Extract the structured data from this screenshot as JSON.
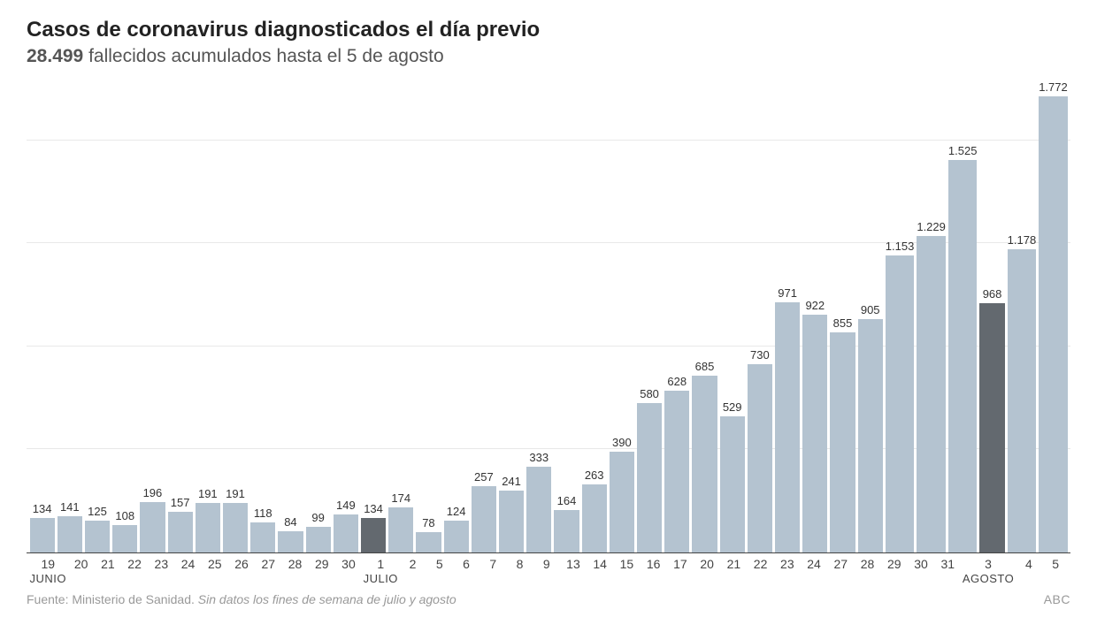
{
  "title": "Casos de coronavirus diagnosticados el día previo",
  "subtitle_bold": "28.499",
  "subtitle_rest": " fallecidos acumulados hasta el 5 de agosto",
  "footer_source": "Fuente: Ministerio de Sanidad. ",
  "footer_note": "Sin datos los fines de semana de julio y agosto",
  "footer_brand": "ABC",
  "chart": {
    "type": "bar",
    "ylim_max": 1850,
    "gridlines_at": [
      400,
      800,
      1200,
      1600
    ],
    "bar_color": "#b4c3d0",
    "bar_color_highlight": "#63696f",
    "gridline_color": "#e8e8e8",
    "axis_color": "#444444",
    "value_fontsize": 13,
    "xlabel_fontsize": 14,
    "month_fontsize": 13,
    "bars": [
      {
        "day": "19",
        "month": "JUNIO",
        "value": 134,
        "label": "134",
        "highlight": false
      },
      {
        "day": "20",
        "month": "",
        "value": 141,
        "label": "141",
        "highlight": false
      },
      {
        "day": "21",
        "month": "",
        "value": 125,
        "label": "125",
        "highlight": false
      },
      {
        "day": "22",
        "month": "",
        "value": 108,
        "label": "108",
        "highlight": false
      },
      {
        "day": "23",
        "month": "",
        "value": 196,
        "label": "196",
        "highlight": false
      },
      {
        "day": "24",
        "month": "",
        "value": 157,
        "label": "157",
        "highlight": false
      },
      {
        "day": "25",
        "month": "",
        "value": 191,
        "label": "191",
        "highlight": false
      },
      {
        "day": "26",
        "month": "",
        "value": 191,
        "label": "191",
        "highlight": false
      },
      {
        "day": "27",
        "month": "",
        "value": 118,
        "label": "118",
        "highlight": false
      },
      {
        "day": "28",
        "month": "",
        "value": 84,
        "label": "84",
        "highlight": false
      },
      {
        "day": "29",
        "month": "",
        "value": 99,
        "label": "99",
        "highlight": false
      },
      {
        "day": "30",
        "month": "",
        "value": 149,
        "label": "149",
        "highlight": false
      },
      {
        "day": "1",
        "month": "JULIO",
        "value": 134,
        "label": "134",
        "highlight": true
      },
      {
        "day": "2",
        "month": "",
        "value": 174,
        "label": "174",
        "highlight": false
      },
      {
        "day": "5",
        "month": "",
        "value": 78,
        "label": "78",
        "highlight": false
      },
      {
        "day": "6",
        "month": "",
        "value": 124,
        "label": "124",
        "highlight": false
      },
      {
        "day": "7",
        "month": "",
        "value": 257,
        "label": "257",
        "highlight": false
      },
      {
        "day": "8",
        "month": "",
        "value": 241,
        "label": "241",
        "highlight": false
      },
      {
        "day": "9",
        "month": "",
        "value": 333,
        "label": "333",
        "highlight": false
      },
      {
        "day": "13",
        "month": "",
        "value": 164,
        "label": "164",
        "highlight": false
      },
      {
        "day": "14",
        "month": "",
        "value": 263,
        "label": "263",
        "highlight": false
      },
      {
        "day": "15",
        "month": "",
        "value": 390,
        "label": "390",
        "highlight": false
      },
      {
        "day": "16",
        "month": "",
        "value": 580,
        "label": "580",
        "highlight": false
      },
      {
        "day": "17",
        "month": "",
        "value": 628,
        "label": "628",
        "highlight": false
      },
      {
        "day": "20",
        "month": "",
        "value": 685,
        "label": "685",
        "highlight": false
      },
      {
        "day": "21",
        "month": "",
        "value": 529,
        "label": "529",
        "highlight": false
      },
      {
        "day": "22",
        "month": "",
        "value": 730,
        "label": "730",
        "highlight": false
      },
      {
        "day": "23",
        "month": "",
        "value": 971,
        "label": "971",
        "highlight": false
      },
      {
        "day": "24",
        "month": "",
        "value": 922,
        "label": "922",
        "highlight": false
      },
      {
        "day": "27",
        "month": "",
        "value": 855,
        "label": "855",
        "highlight": false
      },
      {
        "day": "28",
        "month": "",
        "value": 905,
        "label": "905",
        "highlight": false
      },
      {
        "day": "29",
        "month": "",
        "value": 1153,
        "label": "1.153",
        "highlight": false
      },
      {
        "day": "30",
        "month": "",
        "value": 1229,
        "label": "1.229",
        "highlight": false
      },
      {
        "day": "31",
        "month": "",
        "value": 1525,
        "label": "1.525",
        "highlight": false
      },
      {
        "day": "3",
        "month": "AGOSTO",
        "value": 968,
        "label": "968",
        "highlight": true
      },
      {
        "day": "4",
        "month": "",
        "value": 1178,
        "label": "1.178",
        "highlight": false
      },
      {
        "day": "5",
        "month": "",
        "value": 1772,
        "label": "1.772",
        "highlight": false
      }
    ]
  }
}
